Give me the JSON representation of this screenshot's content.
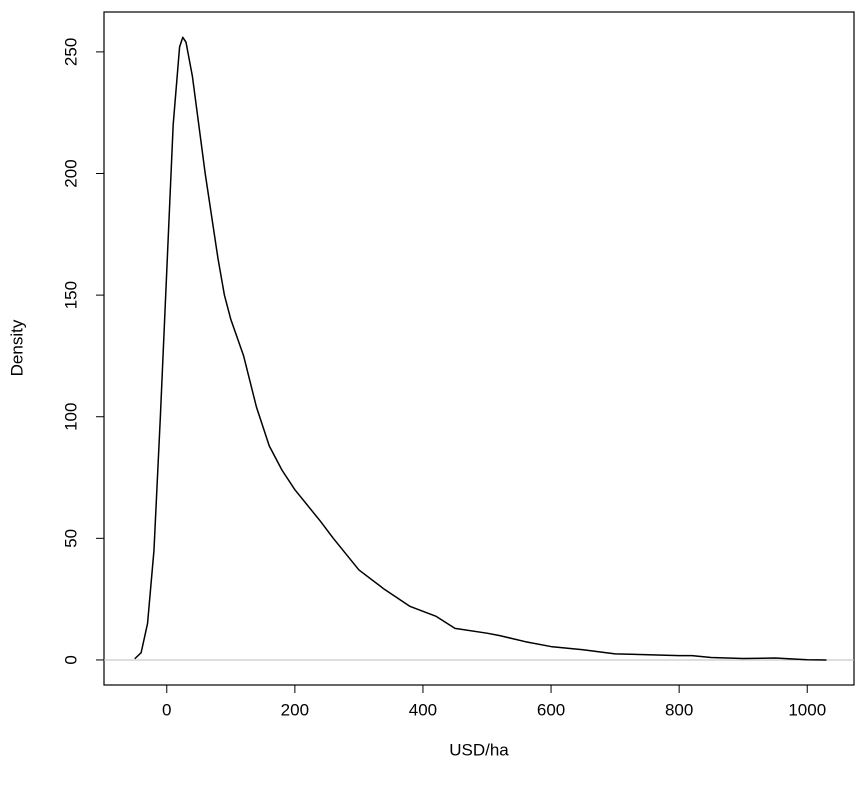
{
  "chart_data": {
    "type": "line",
    "xlabel": "USD/ha",
    "ylabel": "Density",
    "x": [
      -50,
      -40,
      -30,
      -20,
      -10,
      0,
      10,
      20,
      25,
      30,
      40,
      60,
      80,
      90,
      100,
      120,
      140,
      160,
      180,
      200,
      240,
      260,
      300,
      340,
      380,
      420,
      450,
      500,
      520,
      560,
      600,
      650,
      700,
      800,
      820,
      850,
      900,
      950,
      1000,
      1030
    ],
    "series": [
      {
        "color": "#000000",
        "values": [
          0.5,
          3,
          15,
          45,
          100,
          160,
          220,
          252,
          256,
          254,
          240,
          200,
          165,
          150,
          140,
          125,
          104,
          88,
          78,
          70,
          57,
          50,
          37,
          29,
          22,
          18,
          13,
          11,
          10,
          7.5,
          5.5,
          4.2,
          2.5,
          1.8,
          1.8,
          1,
          0.6,
          0.8,
          0.1,
          0
        ]
      }
    ],
    "xlim": [
      -98,
      1073
    ],
    "ylim": [
      -10.3,
      266.4
    ],
    "xticks": [
      0,
      200,
      400,
      600,
      800,
      1000
    ],
    "yticks": [
      0,
      50,
      100,
      150,
      200,
      250
    ],
    "zero_line_color": "#bebebe"
  }
}
